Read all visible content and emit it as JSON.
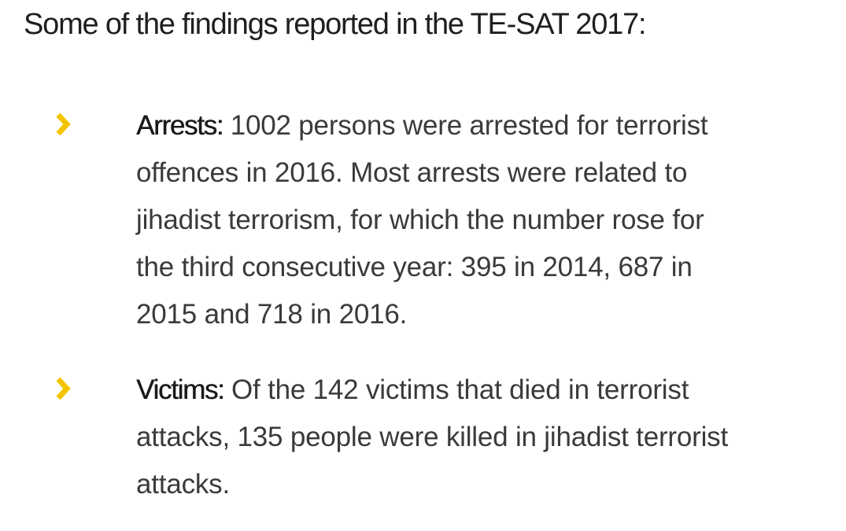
{
  "heading": "Some of the findings reported in the TE-SAT 2017:",
  "accent_color": "#F5C400",
  "bullet_icon": "chevron-right-icon",
  "findings": [
    {
      "label": "Arrests:",
      "lines": [
        "1002 persons were arrested for terrorist",
        "offences in 2016. Most arrests were related to",
        "jihadist terrorism, for which the number rose for",
        "the third consecutive year: 395 in 2014, 687 in",
        "2015 and 718 in 2016."
      ]
    },
    {
      "label": "Victims:",
      "lines": [
        "Of the 142 victims that died in terrorist",
        "attacks, 135 people were killed in jihadist terrorist",
        "attacks."
      ]
    }
  ]
}
